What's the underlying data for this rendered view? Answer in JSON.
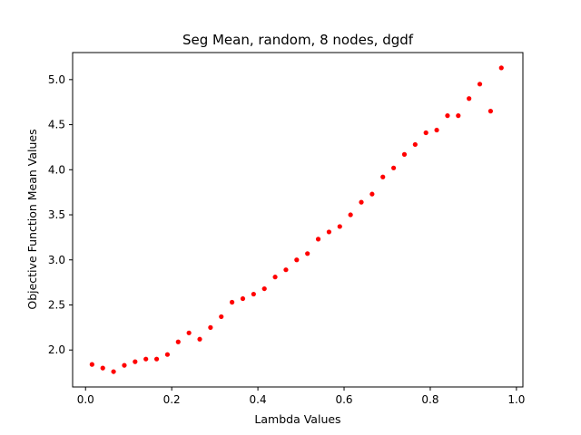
{
  "chart_data": {
    "type": "scatter",
    "title": "Seg Mean, random, 8 nodes, dgdf",
    "xlabel": "Lambda Values",
    "ylabel": "Objective Function Mean Values",
    "xlim": [
      -0.03,
      1.015
    ],
    "ylim": [
      1.59,
      5.3
    ],
    "xticks": [
      0.0,
      0.2,
      0.4,
      0.6,
      0.8,
      1.0
    ],
    "xtick_labels": [
      "0.0",
      "0.2",
      "0.4",
      "0.6",
      "0.8",
      "1.0"
    ],
    "yticks": [
      2.0,
      2.5,
      3.0,
      3.5,
      4.0,
      4.5,
      5.0
    ],
    "ytick_labels": [
      "2.0",
      "2.5",
      "3.0",
      "3.5",
      "4.0",
      "4.5",
      "5.0"
    ],
    "grid": false,
    "marker_color": "#ff0000",
    "series": [
      {
        "x": [
          0.015,
          0.04,
          0.065,
          0.09,
          0.115,
          0.14,
          0.165,
          0.19,
          0.215,
          0.24,
          0.265,
          0.29,
          0.315,
          0.34,
          0.365,
          0.39,
          0.415,
          0.44,
          0.465,
          0.49,
          0.515,
          0.54,
          0.565,
          0.59,
          0.615,
          0.64,
          0.665,
          0.69,
          0.715,
          0.74,
          0.765,
          0.79,
          0.815,
          0.84,
          0.865,
          0.89,
          0.915,
          0.94,
          0.965
        ],
        "y": [
          1.84,
          1.8,
          1.76,
          1.83,
          1.87,
          1.9,
          1.9,
          1.95,
          2.09,
          2.19,
          2.12,
          2.25,
          2.37,
          2.53,
          2.57,
          2.62,
          2.68,
          2.81,
          2.89,
          3.0,
          3.07,
          3.23,
          3.31,
          3.37,
          3.5,
          3.64,
          3.73,
          3.92,
          4.02,
          4.17,
          4.28,
          4.41,
          4.44,
          4.6,
          4.6,
          4.79,
          4.95,
          4.65,
          5.13
        ]
      }
    ]
  }
}
